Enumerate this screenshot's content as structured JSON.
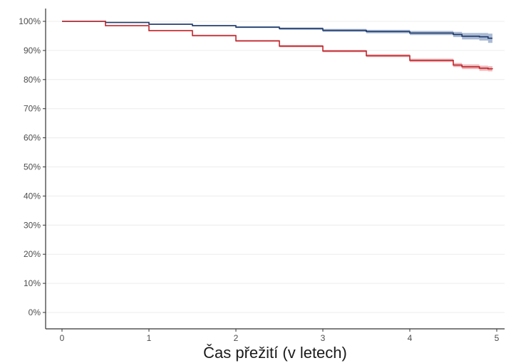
{
  "chart_data": {
    "type": "line",
    "title": "",
    "xlabel": "Čas přežití (v letech)",
    "ylabel": "",
    "xlim": [
      0,
      5
    ],
    "ylim": [
      0,
      100
    ],
    "x_ticks": [
      0,
      1,
      2,
      3,
      4,
      5
    ],
    "x_tick_labels": [
      "0",
      "1",
      "2",
      "3",
      "4",
      "5"
    ],
    "y_ticks": [
      0,
      10,
      20,
      30,
      40,
      50,
      60,
      70,
      80,
      90,
      100
    ],
    "y_tick_labels": [
      "0%",
      "10%",
      "20%",
      "30%",
      "40%",
      "50%",
      "60%",
      "70%",
      "80%",
      "90%",
      "100%"
    ],
    "grid": true,
    "legend": "none",
    "series": [
      {
        "color": "#1f3a6b",
        "band_color": "#8ea3c4",
        "x": [
          0,
          0.5,
          1.0,
          1.5,
          2.0,
          2.5,
          3.0,
          3.5,
          4.0,
          4.5,
          4.6,
          4.8,
          4.9,
          4.95
        ],
        "y": [
          100,
          99.6,
          99.0,
          98.5,
          98.0,
          97.5,
          96.9,
          96.5,
          96.0,
          95.5,
          94.9,
          94.7,
          94.2,
          94.2
        ],
        "lower": [
          100,
          99.5,
          98.8,
          98.3,
          97.7,
          97.1,
          96.4,
          95.9,
          95.3,
          94.6,
          93.8,
          93.4,
          92.6,
          92.6
        ],
        "upper": [
          100,
          99.7,
          99.2,
          98.7,
          98.3,
          97.9,
          97.4,
          97.1,
          96.7,
          96.4,
          96.0,
          96.0,
          95.8,
          95.8
        ]
      },
      {
        "color": "#c0272d",
        "band_color": "#e8a0a3",
        "x": [
          0,
          0.5,
          1.0,
          1.5,
          2.0,
          2.5,
          3.0,
          3.5,
          4.0,
          4.5,
          4.6,
          4.8,
          4.9,
          4.95
        ],
        "y": [
          100,
          98.5,
          96.8,
          95.1,
          93.3,
          91.5,
          89.8,
          88.2,
          86.6,
          85.0,
          84.4,
          83.9,
          83.7,
          83.6
        ],
        "lower": [
          100,
          98.4,
          96.6,
          94.8,
          93.0,
          91.1,
          89.4,
          87.7,
          86.0,
          84.3,
          83.6,
          83.0,
          82.8,
          82.7
        ],
        "upper": [
          100,
          98.6,
          97.0,
          95.4,
          93.6,
          91.9,
          90.2,
          88.7,
          87.2,
          85.7,
          85.2,
          84.8,
          84.6,
          84.5
        ]
      }
    ]
  }
}
